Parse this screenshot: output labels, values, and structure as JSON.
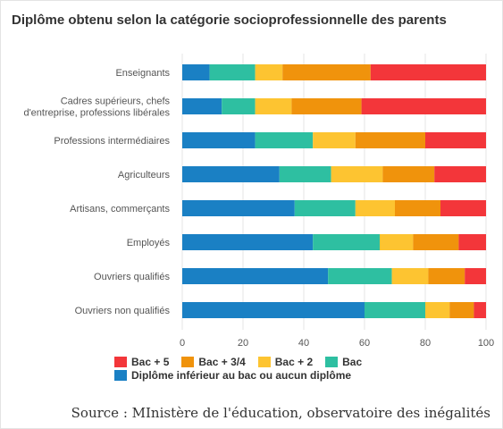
{
  "chart_data": {
    "type": "bar",
    "orientation": "horizontal",
    "stacked": true,
    "title": "Diplôme obtenu selon la catégorie socioprofessionnelle des parents",
    "categories": [
      "Enseignants",
      "Cadres supérieurs, chefs\nd'entreprise, professions libérales",
      "Professions intermédiaires",
      "Agriculteurs",
      "Artisans, commerçants",
      "Employés",
      "Ouvriers qualifiés",
      "Ouvriers non qualifiés"
    ],
    "series": [
      {
        "name": "Diplôme inférieur au bac ou aucun diplôme",
        "color": "#1a80c4",
        "values": [
          9,
          13,
          24,
          32,
          37,
          43,
          48,
          60
        ]
      },
      {
        "name": "Bac",
        "color": "#2ebfa1",
        "values": [
          15,
          11,
          19,
          17,
          20,
          22,
          21,
          20
        ]
      },
      {
        "name": "Bac + 2",
        "color": "#fdc431",
        "values": [
          9,
          12,
          14,
          17,
          13,
          11,
          12,
          8
        ]
      },
      {
        "name": "Bac + 3/4",
        "color": "#f0930c",
        "values": [
          29,
          23,
          23,
          17,
          15,
          15,
          12,
          8
        ]
      },
      {
        "name": "Bac + 5",
        "color": "#f3363a",
        "values": [
          38,
          41,
          20,
          17,
          15,
          9,
          7,
          4
        ]
      }
    ],
    "xlim": [
      0,
      100
    ],
    "xticks": [
      0,
      20,
      40,
      60,
      80,
      100
    ],
    "grid": true,
    "legend_position": "bottom"
  },
  "legend_rows": [
    [
      "Bac + 5",
      "Bac + 3/4",
      "Bac + 2",
      "Bac"
    ],
    [
      "Diplôme inférieur au bac ou aucun diplôme"
    ]
  ],
  "source": "Source : MInistère de l'éducation, observatoire des inégalités"
}
